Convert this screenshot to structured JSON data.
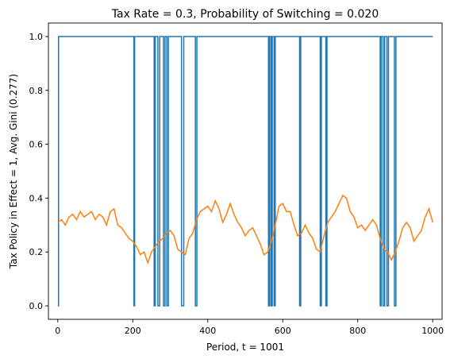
{
  "chart_data": {
    "type": "line",
    "title": "Tax Rate =  0.3, Probability of Switching = 0.020",
    "xlabel": "Period, t = 1001",
    "ylabel": "Tax Policy in Effect = 1, Avg. Gini (0.277)",
    "xlim": [
      -25,
      1025
    ],
    "ylim": [
      -0.05,
      1.05
    ],
    "x_ticks": [
      0,
      200,
      400,
      600,
      800,
      1000
    ],
    "x_tick_labels": [
      "0",
      "200",
      "400",
      "600",
      "800",
      "1000"
    ],
    "y_ticks": [
      0.0,
      0.2,
      0.4,
      0.6,
      0.8,
      1.0
    ],
    "y_tick_labels": [
      "0.0",
      "0.2",
      "0.4",
      "0.6",
      "0.8",
      "1.0"
    ],
    "grid": false,
    "legend": "none",
    "series": [
      {
        "color": "#1f77b4",
        "kind": "step",
        "x": [
          0,
          2,
          203,
          205,
          257,
          260,
          267,
          272,
          282,
          286,
          291,
          295,
          330,
          336,
          367,
          371,
          562,
          565,
          569,
          572,
          577,
          580,
          645,
          648,
          700,
          703,
          715,
          718,
          860,
          863,
          868,
          872,
          878,
          882,
          898,
          902,
          1000
        ],
        "values": [
          0,
          1,
          0,
          1,
          0,
          1,
          0,
          1,
          0,
          1,
          0,
          1,
          0,
          1,
          0,
          1,
          0,
          1,
          0,
          1,
          0,
          1,
          0,
          1,
          0,
          1,
          0,
          1,
          0,
          1,
          0,
          1,
          0,
          1,
          0,
          1,
          1
        ]
      },
      {
        "color": "#ff7f0e",
        "kind": "line",
        "x": [
          0,
          10,
          20,
          30,
          40,
          50,
          60,
          70,
          80,
          90,
          100,
          110,
          120,
          130,
          140,
          150,
          160,
          170,
          180,
          190,
          200,
          210,
          220,
          230,
          240,
          250,
          260,
          270,
          280,
          290,
          300,
          310,
          320,
          330,
          340,
          350,
          360,
          370,
          380,
          390,
          400,
          410,
          420,
          430,
          440,
          450,
          460,
          470,
          480,
          490,
          500,
          510,
          520,
          530,
          540,
          550,
          560,
          570,
          580,
          590,
          600,
          610,
          620,
          630,
          640,
          650,
          660,
          670,
          680,
          690,
          700,
          710,
          720,
          730,
          740,
          750,
          760,
          770,
          780,
          790,
          800,
          810,
          820,
          830,
          840,
          850,
          860,
          870,
          880,
          890,
          900,
          910,
          920,
          930,
          940,
          950,
          960,
          970,
          980,
          990,
          1000
        ],
        "values": [
          0.31,
          0.32,
          0.3,
          0.33,
          0.34,
          0.32,
          0.35,
          0.33,
          0.34,
          0.35,
          0.32,
          0.34,
          0.33,
          0.3,
          0.35,
          0.36,
          0.3,
          0.29,
          0.27,
          0.25,
          0.24,
          0.22,
          0.19,
          0.2,
          0.16,
          0.2,
          0.22,
          0.24,
          0.25,
          0.27,
          0.28,
          0.26,
          0.21,
          0.2,
          0.19,
          0.25,
          0.27,
          0.32,
          0.35,
          0.36,
          0.37,
          0.35,
          0.39,
          0.36,
          0.31,
          0.34,
          0.38,
          0.34,
          0.31,
          0.29,
          0.26,
          0.28,
          0.29,
          0.26,
          0.23,
          0.19,
          0.2,
          0.24,
          0.3,
          0.37,
          0.38,
          0.35,
          0.35,
          0.3,
          0.26,
          0.27,
          0.3,
          0.27,
          0.25,
          0.21,
          0.2,
          0.26,
          0.31,
          0.33,
          0.35,
          0.38,
          0.41,
          0.4,
          0.35,
          0.33,
          0.29,
          0.3,
          0.28,
          0.3,
          0.32,
          0.3,
          0.25,
          0.21,
          0.2,
          0.17,
          0.2,
          0.24,
          0.29,
          0.31,
          0.29,
          0.24,
          0.26,
          0.28,
          0.33,
          0.36,
          0.31
        ]
      }
    ]
  }
}
